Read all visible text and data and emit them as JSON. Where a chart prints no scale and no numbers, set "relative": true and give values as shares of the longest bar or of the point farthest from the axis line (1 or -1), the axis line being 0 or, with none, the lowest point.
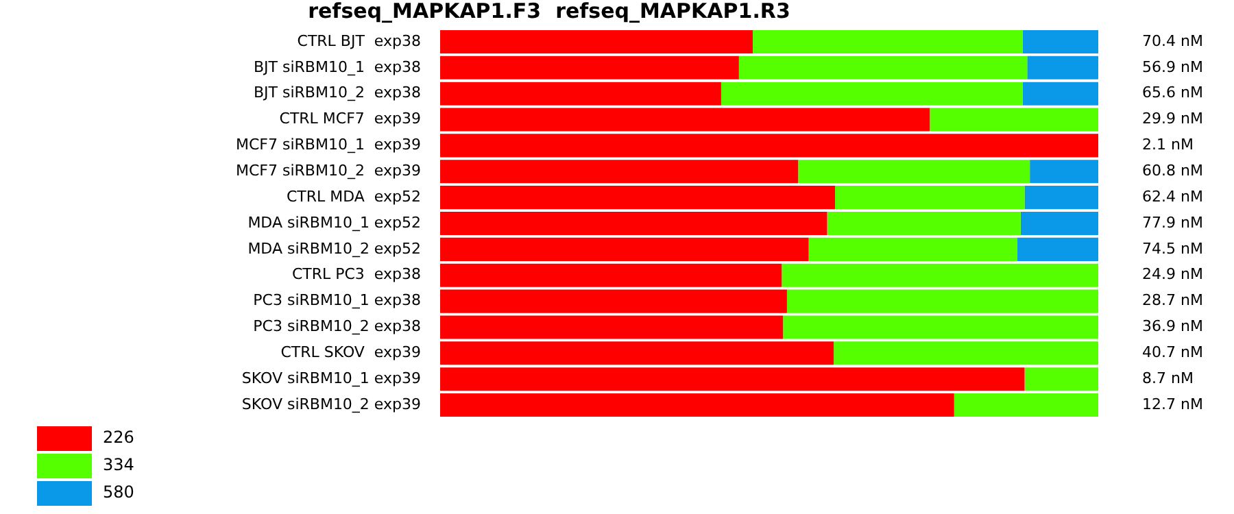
{
  "chart_data": {
    "type": "bar",
    "orientation": "horizontal",
    "stacked": true,
    "relative": true,
    "title": "refseq_MAPKAP1.F3  refseq_MAPKAP1.R3",
    "categories": [
      "CTRL BJT  exp38",
      "BJT siRBM10_1  exp38",
      "BJT siRBM10_2  exp38",
      "CTRL MCF7  exp39",
      "MCF7 siRBM10_1  exp39",
      "MCF7 siRBM10_2  exp39",
      "CTRL MDA  exp52",
      "MDA siRBM10_1 exp52",
      "MDA siRBM10_2 exp52",
      "CTRL PC3  exp38",
      "PC3 siRBM10_1 exp38",
      "PC3 siRBM10_2 exp38",
      "CTRL SKOV  exp39",
      "SKOV siRBM10_1 exp39",
      "SKOV siRBM10_2 exp39"
    ],
    "series": [
      {
        "name": "226",
        "color": "#ff0000",
        "values": [
          0.475,
          0.454,
          0.427,
          0.744,
          1,
          0.544,
          0.6,
          0.588,
          0.56,
          0.519,
          0.527,
          0.521,
          0.598,
          0.888,
          0.781
        ]
      },
      {
        "name": "334",
        "color": "#55ff00",
        "values": [
          0.41,
          0.438,
          0.458,
          0.256,
          0,
          0.352,
          0.288,
          0.294,
          0.317,
          0.481,
          0.473,
          0.479,
          0.402,
          0.112,
          0.219
        ]
      },
      {
        "name": "580",
        "color": "#0a98e8",
        "values": [
          0.115,
          0.108,
          0.115,
          0,
          0,
          0.104,
          0.112,
          0.118,
          0.123,
          0,
          0,
          0,
          0,
          0,
          0
        ]
      }
    ],
    "annotations": [
      "70.4 nM",
      "56.9 nM",
      "65.6 nM",
      "29.9 nM",
      "2.1 nM",
      "60.8 nM",
      "62.4 nM",
      "77.9 nM",
      "74.5 nM",
      "24.9 nM",
      "28.7 nM",
      "36.9 nM",
      "40.7 nM",
      "8.7 nM",
      "12.7 nM"
    ],
    "legend": "bottom left"
  }
}
